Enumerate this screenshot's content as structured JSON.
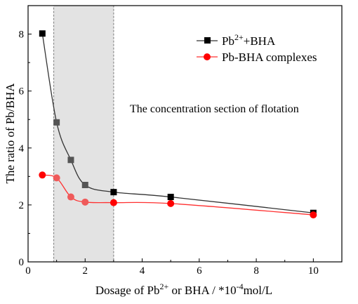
{
  "chart_data": {
    "type": "line",
    "xlabel_parts": [
      "Dosage of Pb",
      "2+",
      " or BHA / *10",
      "-4",
      "mol/L"
    ],
    "ylabel": "The ratio of Pb/BHA",
    "xlim": [
      0,
      11
    ],
    "ylim": [
      0,
      9
    ],
    "xticks": [
      0,
      2,
      4,
      6,
      8,
      10
    ],
    "yticks": [
      0,
      2,
      4,
      6,
      8
    ],
    "shaded_region": {
      "x_from": 0.9,
      "x_to": 3.0,
      "label": "The concentration section of flotation"
    },
    "series": [
      {
        "name_parts": [
          "Pb",
          "2+",
          "+BHA"
        ],
        "marker": "square",
        "color": "#000000",
        "line_color": "#333333",
        "x": [
          0.5,
          1.0,
          1.5,
          2.0,
          3.0,
          5.0,
          10.0
        ],
        "y": [
          8.02,
          4.9,
          3.58,
          2.7,
          2.45,
          2.28,
          1.72
        ]
      },
      {
        "name": "Pb-BHA complexes",
        "marker": "circle",
        "color": "#ff0000",
        "line_color": "#ff3030",
        "x": [
          0.5,
          1.0,
          1.5,
          2.0,
          3.0,
          5.0,
          10.0
        ],
        "y": [
          3.05,
          2.95,
          2.28,
          2.1,
          2.08,
          2.05,
          1.65
        ]
      }
    ],
    "legend_position": "top-right",
    "grid": false
  }
}
